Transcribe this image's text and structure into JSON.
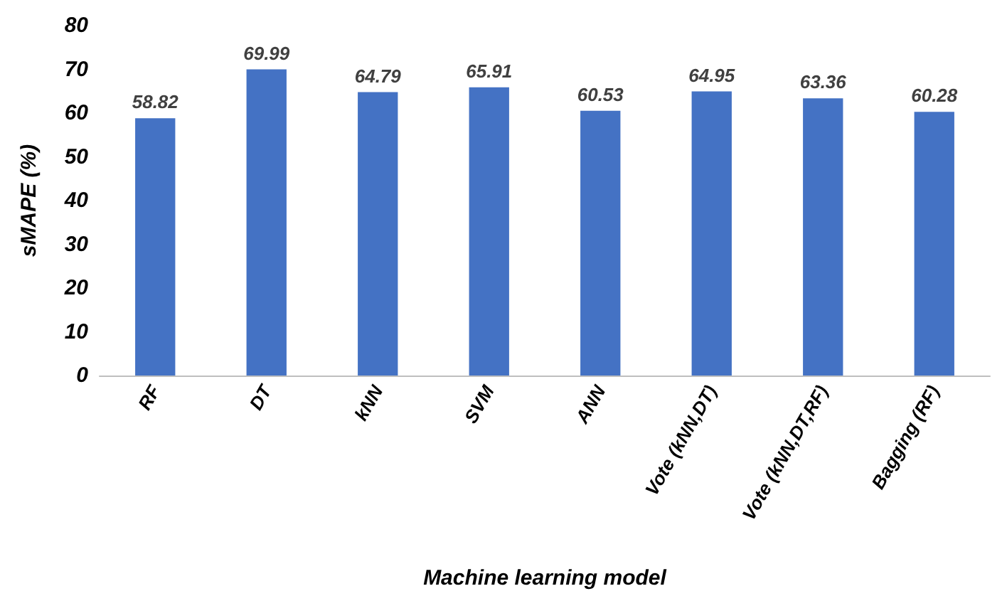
{
  "chart_data": {
    "type": "bar",
    "xlabel": "Machine learning model",
    "ylabel": "sMAPE (%)",
    "categories": [
      "RF",
      "DT",
      "kNN",
      "SVM",
      "ANN",
      "Vote (kNN,DT)",
      "Vote (kNN,DT,RF)",
      "Bagging (RF)"
    ],
    "values": [
      58.82,
      69.99,
      64.79,
      65.91,
      60.53,
      64.95,
      63.36,
      60.28
    ],
    "color": "#4472c4",
    "ylim": [
      0,
      80
    ],
    "yticks": [
      0,
      10,
      20,
      30,
      40,
      50,
      60,
      70,
      80
    ],
    "grid": false,
    "data_labels": true
  }
}
